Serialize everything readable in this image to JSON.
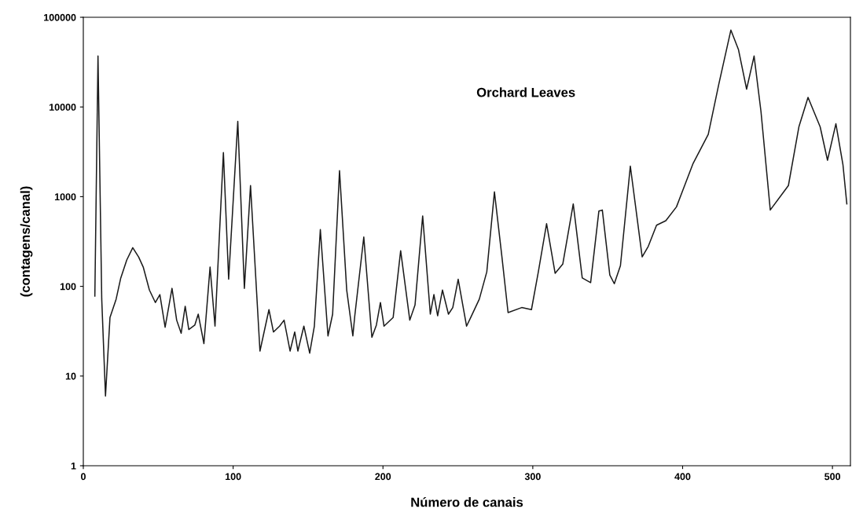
{
  "chart_data": {
    "type": "line",
    "xlabel": "Número de canais",
    "ylabel": "(contagens/canal)",
    "annotations": [
      "Orchard Leaves"
    ],
    "log": "y",
    "grid": false,
    "marker": "none",
    "line_style": "solid",
    "xlim": [
      0,
      512
    ],
    "xticks": [
      0,
      100,
      200,
      300,
      400,
      500
    ],
    "ylim": [
      1,
      100000
    ],
    "yticks": [
      1,
      10,
      100,
      1000,
      10000,
      100000
    ],
    "series": [
      {
        "color": "#1a1a1a",
        "x": [
          7.7,
          9.8,
          12.3,
          14.8,
          17.8,
          21.9,
          25,
          29,
          33,
          36.9,
          40,
          44.1,
          48.1,
          51.1,
          54.6,
          59.2,
          62.3,
          65.3,
          68,
          70.4,
          74.4,
          76.7,
          80.5,
          84.6,
          87.9,
          93.5,
          97,
          103.1,
          107.5,
          111.6,
          117.9,
          123.9,
          126.9,
          131,
          134,
          138,
          141.1,
          143.2,
          147.2,
          151.1,
          154.2,
          158.2,
          163.3,
          166.4,
          171,
          175.8,
          179.9,
          181.2,
          187.2,
          192.6,
          195.6,
          198.3,
          200.7,
          206.8,
          211.8,
          217.9,
          221.4,
          226.5,
          231.6,
          234,
          236.5,
          239.7,
          243.7,
          246.6,
          250.2,
          255.8,
          258.6,
          264.3,
          269.3,
          274.4,
          279.4,
          283.5,
          292.6,
          299.1,
          303.7,
          309.2,
          314.9,
          320,
          327,
          333,
          338.6,
          344.1,
          346.4,
          351.4,
          354.4,
          358.5,
          365.1,
          373,
          377.1,
          382.6,
          388.8,
          395.9,
          407,
          417.1,
          424.1,
          432.2,
          437.3,
          442.7,
          447.7,
          452.3,
          458.5,
          470.6,
          477.6,
          483.7,
          491.8,
          496.7,
          502.3,
          507,
          509.6
        ],
        "values": [
          78,
          37000,
          72,
          6,
          45,
          72,
          124,
          197,
          270,
          213,
          164,
          91,
          66,
          81,
          35,
          95,
          42,
          30,
          60,
          33,
          37,
          49,
          23,
          164,
          36,
          3100,
          120,
          6900,
          95,
          1330,
          19,
          55,
          31,
          36,
          42,
          19,
          31,
          19,
          36,
          18,
          36,
          430,
          28,
          49,
          1950,
          91,
          28,
          47,
          355,
          27,
          37,
          66,
          36,
          45,
          250,
          42,
          62,
          610,
          49,
          81,
          47,
          91,
          49,
          58,
          120,
          36,
          45,
          72,
          145,
          1130,
          213,
          51,
          58,
          55,
          145,
          500,
          140,
          177,
          830,
          124,
          110,
          690,
          710,
          134,
          107,
          170,
          2190,
          213,
          280,
          480,
          540,
          770,
          2350,
          4950,
          17800,
          72000,
          43500,
          15800,
          37000,
          8900,
          710,
          1330,
          6000,
          12800,
          6000,
          2550,
          6500,
          2280,
          830
        ]
      }
    ]
  }
}
